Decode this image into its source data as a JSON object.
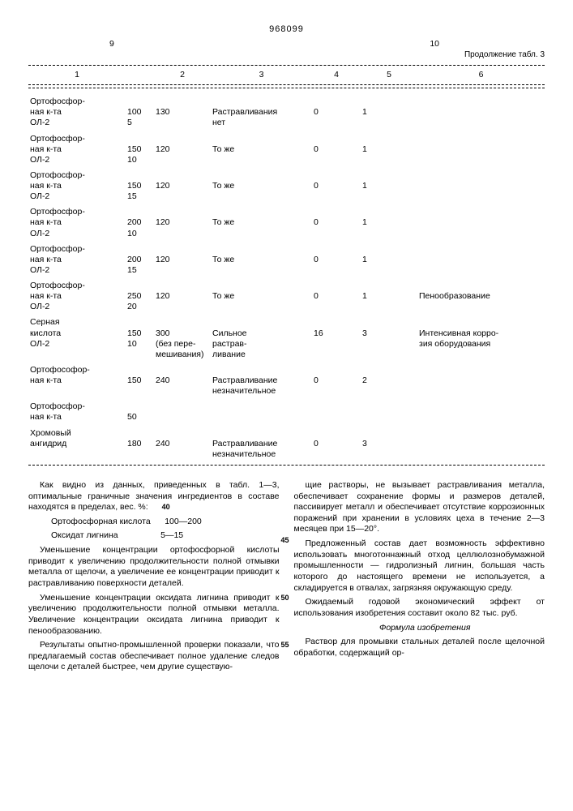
{
  "header": {
    "doc_number": "968099",
    "page_left": "9",
    "page_right": "10",
    "continuation": "Продолжение табл. 3"
  },
  "columns": [
    "1",
    "2",
    "3",
    "4",
    "5",
    "6"
  ],
  "rows": [
    {
      "name1": "Ортофосфор-",
      "name2": "ная к-та",
      "name3": "ОЛ-2",
      "v1a": "100",
      "v1b": "5",
      "v2": "130",
      "v3a": "Растравливания",
      "v3b": "нет",
      "v4": "0",
      "v5": "1",
      "v6": ""
    },
    {
      "name1": "Ортофосфор-",
      "name2": "ная к-та",
      "name3": "ОЛ-2",
      "v1a": "150",
      "v1b": "10",
      "v2": "120",
      "v3a": "То же",
      "v3b": "",
      "v4": "0",
      "v5": "1",
      "v6": ""
    },
    {
      "name1": "Ортофосфор-",
      "name2": "ная к-та",
      "name3": "ОЛ-2",
      "v1a": "150",
      "v1b": "15",
      "v2": "120",
      "v3a": "То же",
      "v3b": "",
      "v4": "0",
      "v5": "1",
      "v6": ""
    },
    {
      "name1": "Ортофосфор-",
      "name2": "ная к-та",
      "name3": "ОЛ-2",
      "v1a": "200",
      "v1b": "10",
      "v2": "120",
      "v3a": "То же",
      "v3b": "",
      "v4": "0",
      "v5": "1",
      "v6": ""
    },
    {
      "name1": "Ортофосфор-",
      "name2": "ная к-та",
      "name3": "ОЛ-2",
      "v1a": "200",
      "v1b": "15",
      "v2": "120",
      "v3a": "То же",
      "v3b": "",
      "v4": "0",
      "v5": "1",
      "v6": ""
    },
    {
      "name1": "Ортофосфор-",
      "name2": "ная к-та",
      "name3": "ОЛ-2",
      "v1a": "250",
      "v1b": "20",
      "v2": "120",
      "v3a": "То же",
      "v3b": "",
      "v4": "0",
      "v5": "1",
      "v6": "Пенообразование"
    },
    {
      "name1": "Серная",
      "name2": "кислота",
      "name3": "ОЛ-2",
      "v1a": "150",
      "v1b": "10",
      "v2": "300",
      "v2b": "(без пере-",
      "v2c": "мешивания)",
      "v3a": "Сильное",
      "v3b": "растрав-",
      "v3c": "ливание",
      "v4": "16",
      "v5": "3",
      "v6": "Интенсивная корро-",
      "v6b": "зия оборудования"
    },
    {
      "name1": "Ортофософор-",
      "name2": "ная к-та",
      "name3": "",
      "v1a": "150",
      "v1b": "",
      "v2": "240",
      "v3a": "Растравливание",
      "v3b": "незначительное",
      "v4": "0",
      "v5": "2",
      "v6": ""
    },
    {
      "name1": "Ортофосфор-",
      "name2": "ная к-та",
      "name3": "",
      "v1a": "50",
      "v1b": "",
      "v2": "",
      "v3a": "",
      "v3b": "",
      "v4": "",
      "v5": "",
      "v6": ""
    },
    {
      "name1": "Хромовый",
      "name2": "ангидрид",
      "name3": "",
      "v1a": "180",
      "v1b": "",
      "v2": "240",
      "v3a": "Растравливание",
      "v3b": "незначительное",
      "v4": "0",
      "v5": "3",
      "v6": ""
    }
  ],
  "text": {
    "l1": "Как видно из данных, приведенных в табл. 1—3, оптимальные граничные значения ингредиентов в составе находятся в пределах, вес. %:",
    "l2a": "Ортофосфорная кислота",
    "l2b": "100—200",
    "l3a": "Оксидат лигнина",
    "l3b": "5—15",
    "l4": "Уменьшение концентрации ортофосфорной кислоты приводит к увеличению продолжительности полной отмывки металла от щелочи, а увеличение ее концентрации приводит к растравливанию поверхности деталей.",
    "l5": "Уменьшение концентрации оксидата лигнина приводит к увеличению продолжительности полной отмывки металла. Увеличение концентрации оксидата лигнина приводит к пенообразованию.",
    "l6": "Результаты опытно-промышленной проверки показали, что предлагаемый состав обеспечивает полное удаление следов щелочи с деталей быстрее, чем другие существую-",
    "r1": "щие растворы, не вызывает растравливания металла, обеспечивает сохранение формы и размеров деталей, пассивирует металл и обеспечивает отсутствие коррозионных поражений при хранении в условиях цеха в течение 2—3 месяцев при 15—20°.",
    "r2": "Предложенный состав дает возможность эффективно использовать многотоннажный отход целлюлознобумажной промышленности — гидролизный лигнин, большая часть которого до настоящего времени не используется, а складируется в отвалах, загрязняя окружающую среду.",
    "r3": "Ожидаемый годовой экономический эффект от использования изобретения составит около 82 тыс. руб.",
    "formula_title": "Формула изобретения",
    "r4": "Раствор для промывки стальных деталей после щелочной обработки, содержащий ор-"
  },
  "margins": {
    "m40": "40",
    "m45": "45",
    "m50": "50",
    "m55": "55"
  }
}
